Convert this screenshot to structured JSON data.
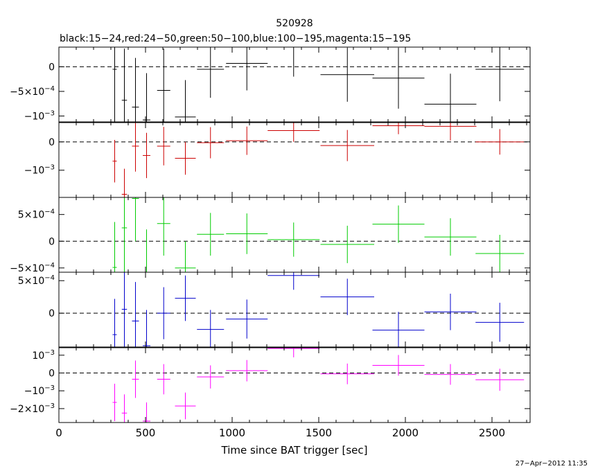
{
  "chart_data": {
    "type": "scatter",
    "title": "520928",
    "subtitle": "black:15−24,red:24−50,green:50−100,blue:100−195,magenta:15−195",
    "xlabel": "Time since BAT trigger [sec]",
    "xlim": [
      0,
      2720
    ],
    "x_ticks": [
      0,
      500,
      1000,
      1500,
      2000,
      2500
    ],
    "x_tick_labels": [
      "0",
      "500",
      "1000",
      "1500",
      "2000",
      "2500"
    ],
    "footer": "27−Apr−2012 11:35",
    "panels": [
      {
        "name": "black",
        "band": "15-24",
        "color": "#000000",
        "ylim": [
          -0.00112,
          0.0004
        ],
        "y_ticks": [
          0,
          -0.0005,
          -0.001
        ],
        "y_tick_labels": [
          {
            "mantissa": "0",
            "exp": ""
          },
          {
            "mantissa": "−5×10",
            "exp": "−4"
          },
          {
            "mantissa": "−10",
            "exp": "−3"
          }
        ],
        "points": [
          {
            "x": 322,
            "xerr": 12,
            "y": -5e-05,
            "yerr": 0.0011
          },
          {
            "x": 378,
            "xerr": 15,
            "y": -0.00068,
            "yerr": 0.00105
          },
          {
            "x": 442,
            "xerr": 20,
            "y": -0.00082,
            "yerr": 0.001
          },
          {
            "x": 506,
            "xerr": 22,
            "y": -0.00108,
            "yerr": 0.00095
          },
          {
            "x": 605,
            "xerr": 38,
            "y": -0.00048,
            "yerr": 0.00085
          },
          {
            "x": 730,
            "xerr": 60,
            "y": -0.00102,
            "yerr": 0.00075
          },
          {
            "x": 875,
            "xerr": 78,
            "y": -5e-05,
            "yerr": 0.00058
          },
          {
            "x": 1085,
            "xerr": 120,
            "y": 7e-05,
            "yerr": 0.00055
          },
          {
            "x": 1355,
            "xerr": 150,
            "y": 0.0004,
            "yerr": 0.0006
          },
          {
            "x": 1665,
            "xerr": 155,
            "y": -0.00016,
            "yerr": 0.00055
          },
          {
            "x": 1960,
            "xerr": 150,
            "y": -0.00023,
            "yerr": 0.00062
          },
          {
            "x": 2260,
            "xerr": 150,
            "y": -0.00076,
            "yerr": 0.00062
          },
          {
            "x": 2545,
            "xerr": 140,
            "y": -5e-05,
            "yerr": 0.00065
          }
        ]
      },
      {
        "name": "red",
        "band": "24-50",
        "color": "#cc0000",
        "ylim": [
          -0.00196,
          0.00068
        ],
        "y_ticks": [
          0,
          -0.001
        ],
        "y_tick_labels": [
          {
            "mantissa": "0",
            "exp": ""
          },
          {
            "mantissa": "−10",
            "exp": "−3"
          }
        ],
        "points": [
          {
            "x": 322,
            "xerr": 12,
            "y": -0.00068,
            "yerr": 0.00075
          },
          {
            "x": 378,
            "xerr": 15,
            "y": -0.00185,
            "yerr": 0.0009
          },
          {
            "x": 442,
            "xerr": 20,
            "y": -0.00015,
            "yerr": 0.0009
          },
          {
            "x": 506,
            "xerr": 22,
            "y": -0.00048,
            "yerr": 0.0008
          },
          {
            "x": 605,
            "xerr": 38,
            "y": -0.00015,
            "yerr": 0.00068
          },
          {
            "x": 730,
            "xerr": 60,
            "y": -0.00058,
            "yerr": 0.00058
          },
          {
            "x": 875,
            "xerr": 78,
            "y": -3e-05,
            "yerr": 0.00055
          },
          {
            "x": 1085,
            "xerr": 120,
            "y": 4e-05,
            "yerr": 0.0005
          },
          {
            "x": 1355,
            "xerr": 150,
            "y": 0.0004,
            "yerr": 0.0004
          },
          {
            "x": 1665,
            "xerr": 155,
            "y": -0.00013,
            "yerr": 0.00055
          },
          {
            "x": 1960,
            "xerr": 150,
            "y": 0.00057,
            "yerr": 0.0003
          },
          {
            "x": 2260,
            "xerr": 150,
            "y": 0.00055,
            "yerr": 0.0005
          },
          {
            "x": 2545,
            "xerr": 140,
            "y": 0.0,
            "yerr": 0.00045
          }
        ]
      },
      {
        "name": "green",
        "band": "50-100",
        "color": "#00cc00",
        "ylim": [
          -0.00058,
          0.00082
        ],
        "y_ticks": [
          0.0005,
          0,
          -0.0005
        ],
        "y_tick_labels": [
          {
            "mantissa": "5×10",
            "exp": "−4"
          },
          {
            "mantissa": "0",
            "exp": ""
          },
          {
            "mantissa": "−5×10",
            "exp": "−4"
          }
        ],
        "points": [
          {
            "x": 322,
            "xerr": 12,
            "y": -0.00049,
            "yerr": 0.00085
          },
          {
            "x": 378,
            "xerr": 15,
            "y": 0.00025,
            "yerr": 0.0009
          },
          {
            "x": 442,
            "xerr": 20,
            "y": 0.0008,
            "yerr": 0.0008
          },
          {
            "x": 506,
            "xerr": 22,
            "y": -0.00058,
            "yerr": 0.0008
          },
          {
            "x": 605,
            "xerr": 38,
            "y": 0.00033,
            "yerr": 0.0006
          },
          {
            "x": 730,
            "xerr": 60,
            "y": -0.0005,
            "yerr": 0.0005
          },
          {
            "x": 875,
            "xerr": 78,
            "y": 0.00013,
            "yerr": 0.0004
          },
          {
            "x": 1085,
            "xerr": 120,
            "y": 0.00014,
            "yerr": 0.00038
          },
          {
            "x": 1355,
            "xerr": 150,
            "y": 3e-05,
            "yerr": 0.00032
          },
          {
            "x": 1665,
            "xerr": 155,
            "y": -6e-05,
            "yerr": 0.00035
          },
          {
            "x": 1960,
            "xerr": 150,
            "y": 0.00032,
            "yerr": 0.00035
          },
          {
            "x": 2260,
            "xerr": 150,
            "y": 8e-05,
            "yerr": 0.00035
          },
          {
            "x": 2545,
            "xerr": 140,
            "y": -0.00023,
            "yerr": 0.00035
          }
        ]
      },
      {
        "name": "blue",
        "band": "100-195",
        "color": "#0000cc",
        "ylim": [
          -0.00052,
          0.00063
        ],
        "y_ticks": [
          0.0005,
          0
        ],
        "y_tick_labels": [
          {
            "mantissa": "5×10",
            "exp": "−4"
          },
          {
            "mantissa": "0",
            "exp": ""
          }
        ],
        "points": [
          {
            "x": 322,
            "xerr": 12,
            "y": -0.00033,
            "yerr": 0.00055
          },
          {
            "x": 378,
            "xerr": 15,
            "y": 6e-05,
            "yerr": 0.0007
          },
          {
            "x": 442,
            "xerr": 20,
            "y": -0.00012,
            "yerr": 0.0006
          },
          {
            "x": 506,
            "xerr": 22,
            "y": -0.0005,
            "yerr": 0.00055
          },
          {
            "x": 605,
            "xerr": 38,
            "y": 0.0,
            "yerr": 0.0004
          },
          {
            "x": 730,
            "xerr": 60,
            "y": 0.00023,
            "yerr": 0.00035
          },
          {
            "x": 875,
            "xerr": 78,
            "y": -0.00025,
            "yerr": 0.0003
          },
          {
            "x": 1085,
            "xerr": 120,
            "y": -9e-05,
            "yerr": 0.0003
          },
          {
            "x": 1355,
            "xerr": 150,
            "y": 0.00058,
            "yerr": 0.00022
          },
          {
            "x": 1665,
            "xerr": 155,
            "y": 0.00025,
            "yerr": 0.00028
          },
          {
            "x": 1960,
            "xerr": 150,
            "y": -0.00026,
            "yerr": 0.00028
          },
          {
            "x": 2260,
            "xerr": 150,
            "y": 2e-05,
            "yerr": 0.00028
          },
          {
            "x": 2545,
            "xerr": 140,
            "y": -0.00014,
            "yerr": 0.0003
          }
        ]
      },
      {
        "name": "magenta",
        "band": "15-195",
        "color": "#ff00ff",
        "ylim": [
          -0.00278,
          0.00142
        ],
        "y_ticks": [
          0.001,
          0,
          -0.001,
          -0.002
        ],
        "y_tick_labels": [
          {
            "mantissa": "10",
            "exp": "−3"
          },
          {
            "mantissa": "0",
            "exp": ""
          },
          {
            "mantissa": "−10",
            "exp": "−3"
          },
          {
            "mantissa": "−2×10",
            "exp": "−3"
          }
        ],
        "points": [
          {
            "x": 322,
            "xerr": 12,
            "y": -0.00165,
            "yerr": 0.00105
          },
          {
            "x": 378,
            "xerr": 15,
            "y": -0.00225,
            "yerr": 0.00105
          },
          {
            "x": 442,
            "xerr": 20,
            "y": -0.00035,
            "yerr": 0.00105
          },
          {
            "x": 506,
            "xerr": 22,
            "y": -0.0027,
            "yerr": 0.00105
          },
          {
            "x": 605,
            "xerr": 38,
            "y": -0.00035,
            "yerr": 0.00085
          },
          {
            "x": 730,
            "xerr": 60,
            "y": -0.00185,
            "yerr": 0.00075
          },
          {
            "x": 875,
            "xerr": 78,
            "y": -0.00022,
            "yerr": 0.00065
          },
          {
            "x": 1085,
            "xerr": 120,
            "y": 0.00013,
            "yerr": 0.0006
          },
          {
            "x": 1355,
            "xerr": 150,
            "y": 0.00138,
            "yerr": 0.0005
          },
          {
            "x": 1665,
            "xerr": 155,
            "y": -5e-05,
            "yerr": 0.00058
          },
          {
            "x": 1960,
            "xerr": 150,
            "y": 0.00043,
            "yerr": 0.00058
          },
          {
            "x": 2260,
            "xerr": 150,
            "y": -8e-05,
            "yerr": 0.00058
          },
          {
            "x": 2545,
            "xerr": 140,
            "y": -0.00038,
            "yerr": 0.00062
          }
        ]
      }
    ]
  }
}
